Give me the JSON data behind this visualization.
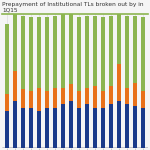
{
  "title": "Prepayment of Institutional TLs broken out by in 1Q15",
  "title_fontsize": 4.2,
  "title_color": "#333333",
  "background_color": "#f5f5f5",
  "bottom_color": "#0a0a2a",
  "bar_width": 0.55,
  "n_bars": 18,
  "colors": {
    "green": "#8cb550",
    "orange": "#e8711a",
    "blue": "#1a3a8a"
  },
  "green_values": [
    42,
    35,
    44,
    44,
    42,
    44,
    43,
    44,
    43,
    44,
    43,
    42,
    44,
    42,
    30,
    43,
    40,
    44
  ],
  "orange_values": [
    10,
    18,
    11,
    10,
    14,
    10,
    12,
    10,
    10,
    10,
    10,
    13,
    10,
    11,
    22,
    10,
    14,
    10
  ],
  "blue_values": [
    22,
    28,
    24,
    24,
    22,
    24,
    24,
    26,
    28,
    24,
    26,
    24,
    24,
    26,
    28,
    26,
    25,
    24
  ],
  "ylim": [
    0,
    80
  ],
  "tick_color": "#aaaaaa",
  "accent_green": "#8cb550"
}
